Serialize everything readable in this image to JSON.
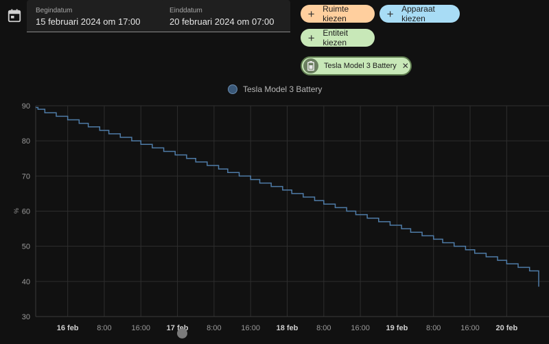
{
  "date_range": {
    "start": {
      "label": "Begindatum",
      "value": "15 februari 2024 om 17:00"
    },
    "end": {
      "label": "Einddatum",
      "value": "20 februari 2024 om 07:00"
    }
  },
  "pickers": {
    "area": {
      "label": "Ruimte kiezen",
      "color": "#ffcf9e"
    },
    "device": {
      "label": "Apparaat kiezen",
      "color": "#a8dcf5"
    },
    "entity": {
      "label": "Entiteit kiezen",
      "color": "#c8e8b8"
    }
  },
  "selected_entity": {
    "label": "Tesla Model 3 Battery",
    "icon": "battery-icon"
  },
  "chart_data": {
    "type": "line",
    "step": true,
    "legend": "top-center",
    "ylabel": "%",
    "ylim": [
      30,
      90
    ],
    "yticks": [
      30,
      40,
      50,
      60,
      70,
      80,
      90
    ],
    "grid": true,
    "x_range_hours": [
      0,
      110
    ],
    "xticks": [
      {
        "hours": 7,
        "label": "16 feb",
        "bold": true
      },
      {
        "hours": 15,
        "label": "8:00",
        "bold": false
      },
      {
        "hours": 23,
        "label": "16:00",
        "bold": false
      },
      {
        "hours": 31,
        "label": "17 feb",
        "bold": true
      },
      {
        "hours": 39,
        "label": "8:00",
        "bold": false
      },
      {
        "hours": 47,
        "label": "16:00",
        "bold": false
      },
      {
        "hours": 55,
        "label": "18 feb",
        "bold": true
      },
      {
        "hours": 63,
        "label": "8:00",
        "bold": false
      },
      {
        "hours": 71,
        "label": "16:00",
        "bold": false
      },
      {
        "hours": 79,
        "label": "19 feb",
        "bold": true
      },
      {
        "hours": 87,
        "label": "8:00",
        "bold": false
      },
      {
        "hours": 95,
        "label": "16:00",
        "bold": false
      },
      {
        "hours": 103,
        "label": "20 feb",
        "bold": true
      }
    ],
    "series": [
      {
        "name": "Tesla Model 3 Battery",
        "color": "#4f7ca8",
        "x_hours": [
          0,
          0.5,
          2,
          4.5,
          7,
          9.5,
          11.5,
          14,
          16,
          18.5,
          21,
          23,
          25.5,
          28,
          30.5,
          33,
          35,
          37.5,
          40,
          42,
          44.5,
          47,
          49,
          51.5,
          54,
          56,
          58.5,
          61,
          63,
          65.5,
          68,
          70,
          72.5,
          75,
          77.5,
          80,
          82,
          84.5,
          87,
          89,
          91.5,
          94,
          96,
          98.5,
          101,
          103,
          105.5,
          108,
          110
        ],
        "values": [
          89.5,
          89,
          88,
          87,
          86,
          85,
          84,
          83,
          82,
          81,
          80,
          79,
          78,
          77,
          76,
          75,
          74,
          73,
          72,
          71,
          70,
          69,
          68,
          67,
          66,
          65,
          64,
          63,
          62,
          61,
          60,
          59,
          58,
          57,
          56,
          55,
          54,
          53,
          52,
          51,
          50,
          49,
          48,
          47,
          46,
          45,
          44,
          43,
          38.5
        ]
      }
    ]
  }
}
